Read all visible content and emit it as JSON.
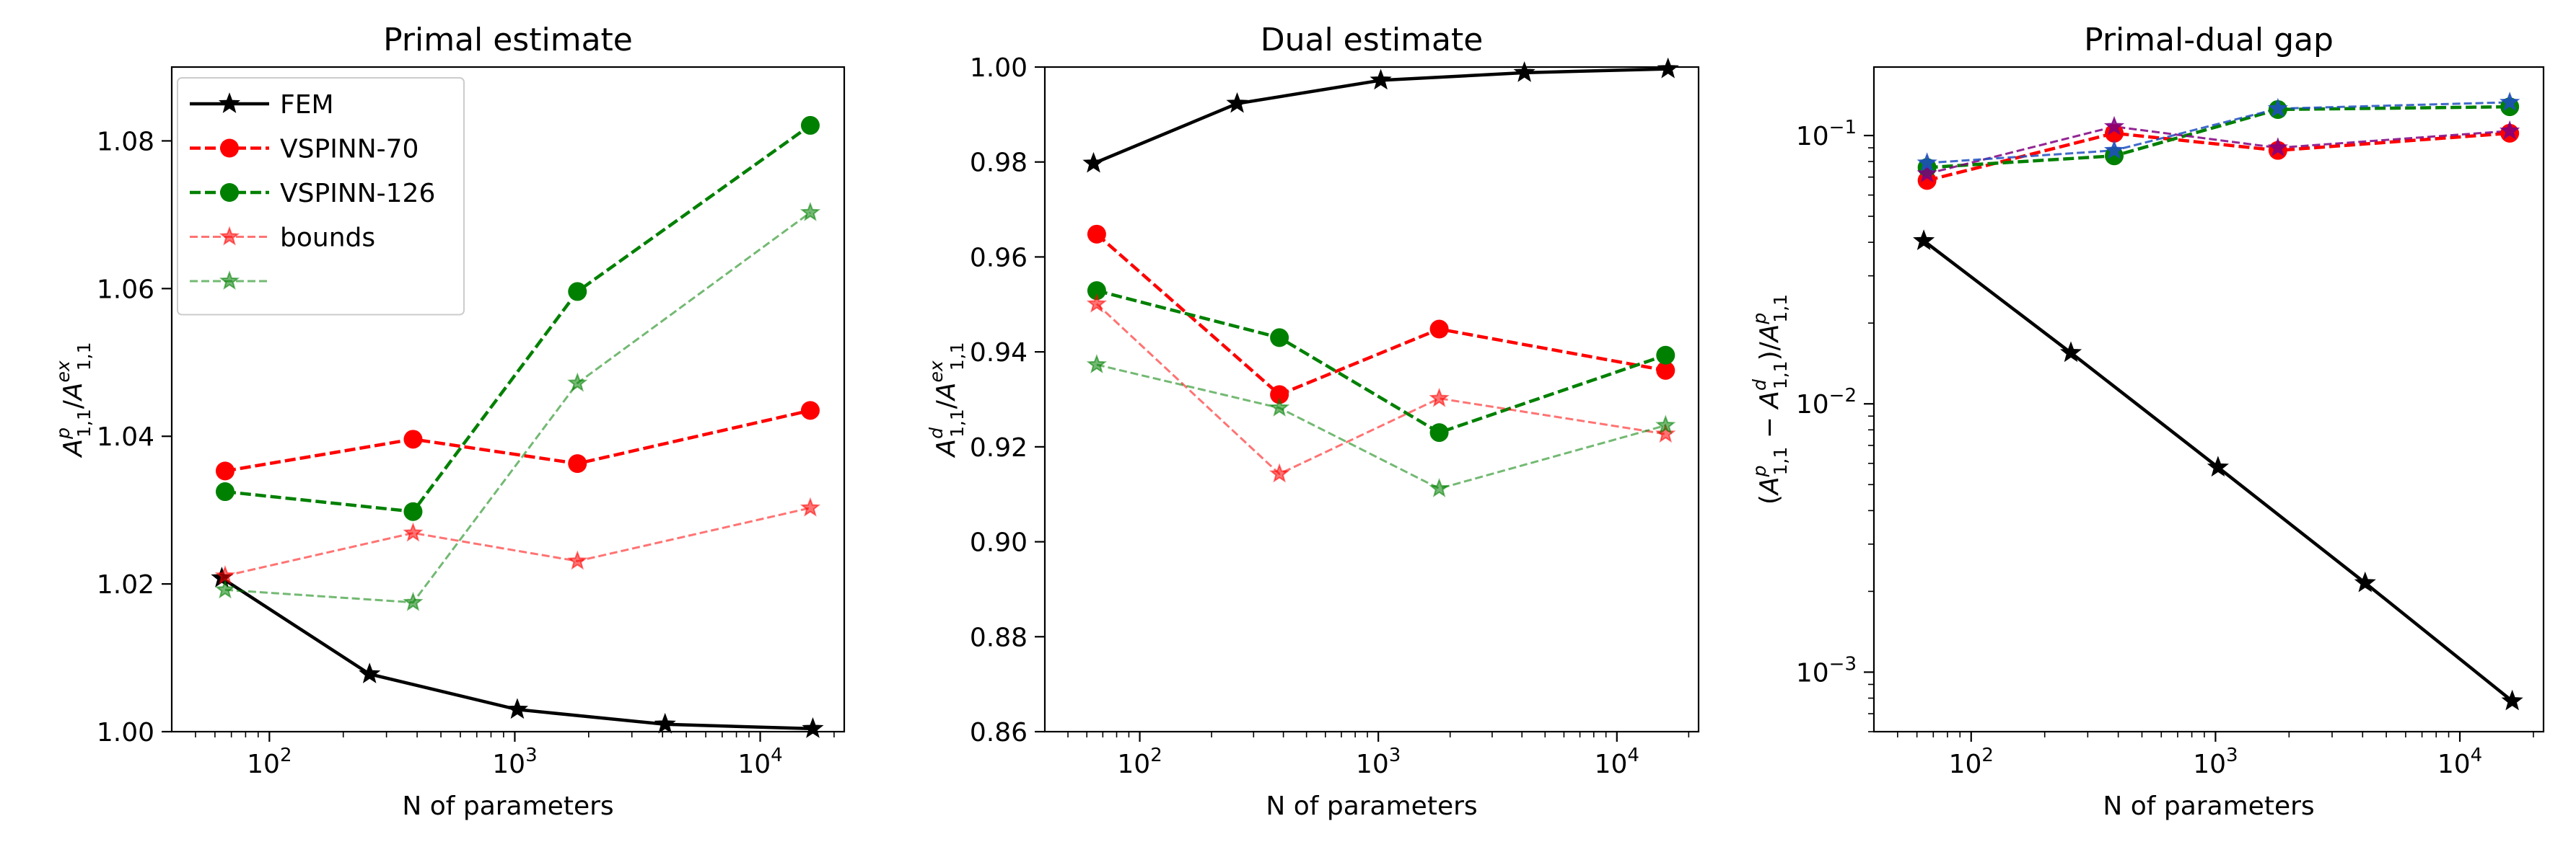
{
  "chart_data": [
    {
      "type": "line",
      "title": "Primal estimate",
      "xlabel": "N of parameters",
      "ylabel": "A_{1,1}^{p}/A_{1,1}^{ex}",
      "xscale": "log",
      "xlim": [
        40,
        22000
      ],
      "ylim": [
        1.0,
        1.09
      ],
      "xticks": [
        {
          "value": 100,
          "label": "10^2"
        },
        {
          "value": 1000,
          "label": "10^3"
        },
        {
          "value": 10000,
          "label": "10^4"
        }
      ],
      "yticks": [
        "1.00",
        "1.02",
        "1.04",
        "1.06",
        "1.08"
      ],
      "legend_position": "top-left",
      "series": [
        {
          "name": "FEM",
          "color": "#000000",
          "dash": "solid",
          "marker": "star",
          "alpha": 1,
          "points": [
            [
              64,
              1.0208
            ],
            [
              256,
              1.0078
            ],
            [
              1024,
              1.003
            ],
            [
              4096,
              1.001
            ],
            [
              16384,
              1.0004
            ]
          ]
        },
        {
          "name": "VSPINN-70",
          "color": "#ff0000",
          "dash": "dashed",
          "marker": "circle",
          "alpha": 1,
          "points": [
            [
              66,
              1.0353
            ],
            [
              385,
              1.0396
            ],
            [
              1800,
              1.0363
            ],
            [
              16000,
              1.0435
            ]
          ]
        },
        {
          "name": "VSPINN-126",
          "color": "#008000",
          "dash": "dashed",
          "marker": "circle",
          "alpha": 1,
          "points": [
            [
              66,
              1.0325
            ],
            [
              385,
              1.0298
            ],
            [
              1800,
              1.0596
            ],
            [
              16000,
              1.0821
            ]
          ]
        },
        {
          "name": "bounds",
          "color": "#ff0000",
          "dash": "dashed",
          "marker": "star",
          "alpha": 0.55,
          "points": [
            [
              66,
              1.0211
            ],
            [
              385,
              1.0269
            ],
            [
              1800,
              1.0231
            ],
            [
              16000,
              1.0303
            ]
          ]
        },
        {
          "name": "",
          "color": "#008000",
          "dash": "dashed",
          "marker": "star",
          "alpha": 0.55,
          "points": [
            [
              66,
              1.0192
            ],
            [
              385,
              1.0175
            ],
            [
              1800,
              1.0472
            ],
            [
              16000,
              1.0703
            ]
          ]
        }
      ]
    },
    {
      "type": "line",
      "title": "Dual estimate",
      "xlabel": "N of parameters",
      "ylabel": "A_{1,1}^{d}/A_{1,1}^{ex}",
      "xscale": "log",
      "xlim": [
        40,
        22000
      ],
      "ylim": [
        0.86,
        1.0
      ],
      "xticks": [
        {
          "value": 100,
          "label": "10^2"
        },
        {
          "value": 1000,
          "label": "10^3"
        },
        {
          "value": 10000,
          "label": "10^4"
        }
      ],
      "yticks": [
        "0.86",
        "0.88",
        "0.90",
        "0.92",
        "0.94",
        "0.96",
        "0.98",
        "1.00"
      ],
      "series": [
        {
          "name": "FEM",
          "color": "#000000",
          "dash": "solid",
          "marker": "star",
          "alpha": 1,
          "points": [
            [
              64,
              0.9797
            ],
            [
              256,
              0.9923
            ],
            [
              1024,
              0.9972
            ],
            [
              4096,
              0.9988
            ],
            [
              16384,
              0.9996
            ]
          ]
        },
        {
          "name": "VSPINN-70",
          "color": "#ff0000",
          "dash": "dashed",
          "marker": "circle",
          "alpha": 1,
          "points": [
            [
              66,
              0.9648
            ],
            [
              385,
              0.931
            ],
            [
              1800,
              0.9448
            ],
            [
              16000,
              0.9361
            ]
          ]
        },
        {
          "name": "VSPINN-126",
          "color": "#008000",
          "dash": "dashed",
          "marker": "circle",
          "alpha": 1,
          "points": [
            [
              66,
              0.9529
            ],
            [
              385,
              0.943
            ],
            [
              1800,
              0.923
            ],
            [
              16000,
              0.9393
            ]
          ]
        },
        {
          "name": "bounds",
          "color": "#ff0000",
          "dash": "dashed",
          "marker": "star",
          "alpha": 0.55,
          "points": [
            [
              66,
              0.9501
            ],
            [
              385,
              0.9143
            ],
            [
              1800,
              0.9302
            ],
            [
              16000,
              0.9227
            ]
          ]
        },
        {
          "name": "",
          "color": "#008000",
          "dash": "dashed",
          "marker": "star",
          "alpha": 0.55,
          "points": [
            [
              66,
              0.9373
            ],
            [
              385,
              0.9282
            ],
            [
              1800,
              0.9112
            ],
            [
              16000,
              0.9245
            ]
          ]
        }
      ]
    },
    {
      "type": "line",
      "title": "Primal-dual gap",
      "xlabel": "N of parameters",
      "ylabel": "(A_{1,1}^{p} - A_{1,1}^{d})/A_{1,1}^{p}",
      "xscale": "log",
      "yscale": "log",
      "xlim": [
        40,
        22000
      ],
      "ylim": [
        0.0006,
        0.18
      ],
      "xticks": [
        {
          "value": 100,
          "label": "10^2"
        },
        {
          "value": 1000,
          "label": "10^3"
        },
        {
          "value": 10000,
          "label": "10^4"
        }
      ],
      "yticks": [
        {
          "value": 0.001,
          "label": "10^-3"
        },
        {
          "value": 0.01,
          "label": "10^-2"
        },
        {
          "value": 0.1,
          "label": "10^-1"
        }
      ],
      "series": [
        {
          "name": "FEM",
          "color": "#000000",
          "dash": "solid",
          "marker": "star",
          "alpha": 1,
          "points": [
            [
              64,
              0.0405
            ],
            [
              256,
              0.0155
            ],
            [
              1024,
              0.0058
            ],
            [
              4096,
              0.00215
            ],
            [
              16384,
              0.00078
            ]
          ]
        },
        {
          "name": "VSPINN-70",
          "color": "#ff0000",
          "dash": "dashed",
          "marker": "circle",
          "alpha": 1,
          "points": [
            [
              66,
              0.068
            ],
            [
              385,
              0.102
            ],
            [
              1800,
              0.088
            ],
            [
              16000,
              0.102
            ]
          ]
        },
        {
          "name": "VSPINN-126",
          "color": "#008000",
          "dash": "dashed",
          "marker": "circle",
          "alpha": 1,
          "points": [
            [
              66,
              0.076
            ],
            [
              385,
              0.084
            ],
            [
              1800,
              0.125
            ],
            [
              16000,
              0.128
            ]
          ]
        },
        {
          "name": "",
          "color": "#800080",
          "dash": "dashed",
          "marker": "star",
          "alpha": 0.85,
          "points": [
            [
              66,
              0.072
            ],
            [
              385,
              0.108
            ],
            [
              1800,
              0.09
            ],
            [
              16000,
              0.104
            ]
          ]
        },
        {
          "name": "",
          "color": "#1f4fbf",
          "dash": "dashed",
          "marker": "star",
          "alpha": 0.85,
          "points": [
            [
              66,
              0.079
            ],
            [
              385,
              0.088
            ],
            [
              1800,
              0.126
            ],
            [
              16000,
              0.133
            ]
          ]
        }
      ]
    }
  ]
}
